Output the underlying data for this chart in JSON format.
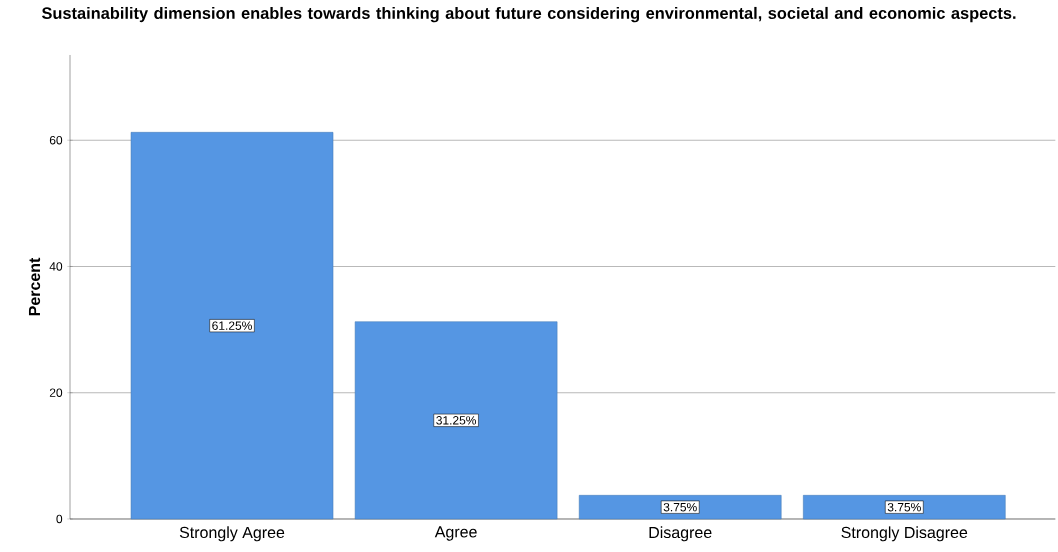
{
  "chart_data": {
    "type": "bar",
    "title": "Sustainability dimension enables towards thinking about future considering environmental, societal and economic aspects.",
    "ylabel": "Percent",
    "categories": [
      "Strongly Agree",
      "Agree",
      "Disagree",
      "Strongly Disagree"
    ],
    "values": [
      61.25,
      31.25,
      3.75,
      3.75
    ],
    "value_labels": [
      "61.25%",
      "31.25%",
      "3.75%",
      "3.75%"
    ],
    "color": "#5596e3",
    "ylim": [
      0,
      73.5
    ],
    "yticks": [
      0,
      20,
      40,
      60
    ],
    "grid": "y"
  }
}
